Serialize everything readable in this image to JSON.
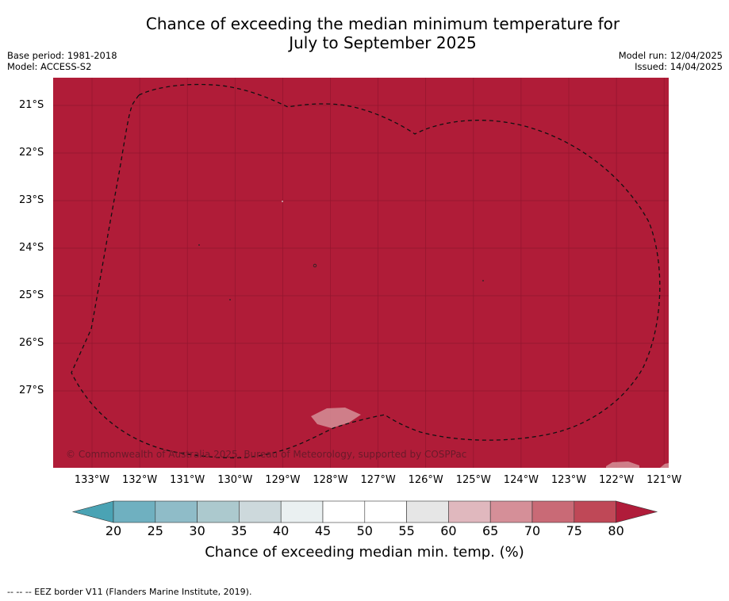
{
  "title_line1": "Chance of exceeding the median minimum temperature for",
  "title_line2": "July to September 2025",
  "info_left": {
    "base_period": "Base period: 1981-2018",
    "model": "Model: ACCESS-S2"
  },
  "info_right": {
    "model_run": "Model run: 12/04/2025",
    "issued": "Issued: 14/04/2025"
  },
  "copyright": "© Commonwealth of Australia 2025, Bureau of Meteorology, supported by COSPPac",
  "latitudes": [
    "21°S",
    "22°S",
    "23°S",
    "24°S",
    "25°S",
    "26°S",
    "27°S"
  ],
  "longitudes": [
    "133°W",
    "132°W",
    "131°W",
    "130°W",
    "129°W",
    "128°W",
    "127°W",
    "126°W",
    "125°W",
    "124°W",
    "123°W",
    "122°W",
    "121°W"
  ],
  "colorbar": {
    "ticks": [
      "20",
      "25",
      "30",
      "35",
      "40",
      "45",
      "50",
      "55",
      "60",
      "65",
      "70",
      "75",
      "80"
    ],
    "colors": [
      "#4aa3b4",
      "#6fb0c0",
      "#8fbcc8",
      "#acc9ce",
      "#cdd9dc",
      "#eaf0f1",
      "#ffffff",
      "#ffffff",
      "#e6e6e6",
      "#e0b8be",
      "#d58f98",
      "#c96a76",
      "#bf4857",
      "#b01c3a"
    ],
    "label": "Chance of exceeding median min. temp. (%)"
  },
  "map_fill_color": "#b01c38",
  "footnote": "-- -- -- EEZ border V11 (Flanders Marine Institute, 2019)."
}
